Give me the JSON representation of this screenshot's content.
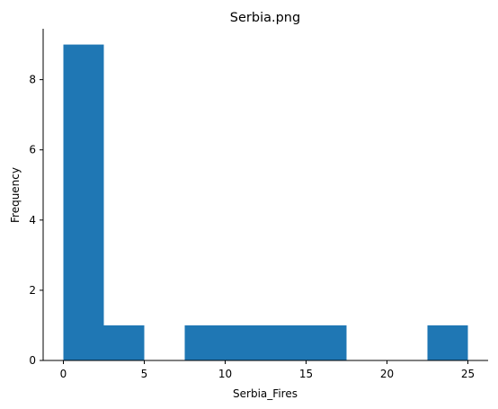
{
  "chart_data": {
    "type": "bar",
    "title": "Serbia.png",
    "xlabel": "Serbia_Fires",
    "ylabel": "Frequency",
    "xlim": [
      -1.25,
      26.25
    ],
    "ylim": [
      0,
      9.45
    ],
    "x_ticks": [
      0,
      5,
      10,
      15,
      20,
      25
    ],
    "y_ticks": [
      0,
      2,
      4,
      6,
      8
    ],
    "bins": [
      {
        "x0": 0,
        "x1": 2.5,
        "value": 9
      },
      {
        "x0": 2.5,
        "x1": 5,
        "value": 1
      },
      {
        "x0": 5,
        "x1": 7.5,
        "value": 0
      },
      {
        "x0": 7.5,
        "x1": 10,
        "value": 1
      },
      {
        "x0": 10,
        "x1": 12.5,
        "value": 1
      },
      {
        "x0": 12.5,
        "x1": 15,
        "value": 1
      },
      {
        "x0": 15,
        "x1": 17.5,
        "value": 1
      },
      {
        "x0": 17.5,
        "x1": 20,
        "value": 0
      },
      {
        "x0": 20,
        "x1": 22.5,
        "value": 0
      },
      {
        "x0": 22.5,
        "x1": 25,
        "value": 1
      }
    ],
    "bar_color": "#1f77b4",
    "grid": false,
    "spines": [
      "left",
      "bottom"
    ]
  }
}
